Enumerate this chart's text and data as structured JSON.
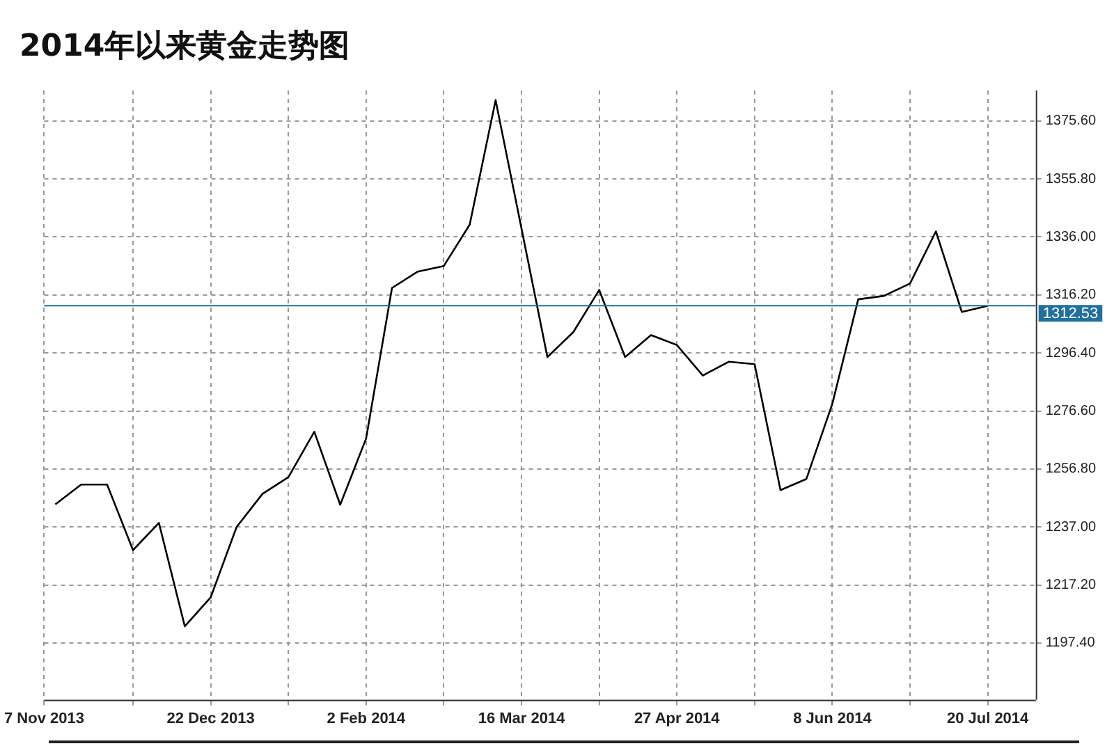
{
  "chart_data": {
    "type": "line",
    "title": "2014年以来黄金走势图",
    "x": [
      "2013-11-10",
      "2013-11-17",
      "2013-11-24",
      "2013-12-01",
      "2013-12-08",
      "2013-12-15",
      "2013-12-22",
      "2013-12-29",
      "2014-01-05",
      "2014-01-12",
      "2014-01-19",
      "2014-01-26",
      "2014-02-02",
      "2014-02-09",
      "2014-02-16",
      "2014-02-23",
      "2014-03-02",
      "2014-03-09",
      "2014-03-23",
      "2014-03-30",
      "2014-04-06",
      "2014-04-13",
      "2014-04-20",
      "2014-04-27",
      "2014-05-04",
      "2014-05-11",
      "2014-05-18",
      "2014-05-25",
      "2014-06-01",
      "2014-06-08",
      "2014-06-15",
      "2014-06-22",
      "2014-06-29",
      "2014-07-06",
      "2014-07-13",
      "2014-07-20"
    ],
    "series": [
      {
        "color": "#000000",
        "values": [
          1244.7,
          1251.5,
          1251.5,
          1229.1,
          1238.4,
          1203.1,
          1213.0,
          1237.0,
          1248.3,
          1254.0,
          1269.5,
          1244.6,
          1267.2,
          1318.6,
          1324.2,
          1326.1,
          1340.2,
          1382.7,
          1295.0,
          1303.5,
          1317.9,
          1295.0,
          1302.5,
          1299.1,
          1288.7,
          1293.4,
          1292.6,
          1249.6,
          1253.4,
          1279.0,
          1314.7,
          1315.9,
          1320.1,
          1337.9,
          1310.4,
          1312.5
        ]
      }
    ],
    "xlim": [
      "2013-11-07",
      "2014-08-02"
    ],
    "xticks": [
      {
        "value": "2013-11-07",
        "label": "7 Nov 2013"
      },
      {
        "value": "2013-12-01",
        "label": null
      },
      {
        "value": "2013-12-22",
        "label": "22 Dec 2013"
      },
      {
        "value": "2014-01-12",
        "label": null
      },
      {
        "value": "2014-02-02",
        "label": "2 Feb 2014"
      },
      {
        "value": "2014-02-23",
        "label": null
      },
      {
        "value": "2014-03-16",
        "label": "16 Mar 2014"
      },
      {
        "value": "2014-04-06",
        "label": null
      },
      {
        "value": "2014-04-27",
        "label": "27 Apr 2014"
      },
      {
        "value": "2014-05-18",
        "label": null
      },
      {
        "value": "2014-06-08",
        "label": "8 Jun 2014"
      },
      {
        "value": "2014-06-29",
        "label": null
      },
      {
        "value": "2014-07-20",
        "label": "20 Jul 2014"
      }
    ],
    "ylim": [
      1178,
      1386
    ],
    "yticks": [
      {
        "value": 1197.4,
        "label": "1197.40"
      },
      {
        "value": 1217.2,
        "label": "1217.20"
      },
      {
        "value": 1237,
        "label": "1237.00"
      },
      {
        "value": 1256.8,
        "label": "1256.80"
      },
      {
        "value": 1276.6,
        "label": "1276.60"
      },
      {
        "value": 1296.4,
        "label": "1296.40"
      },
      {
        "value": 1316.2,
        "label": "1316.20"
      },
      {
        "value": 1336,
        "label": "1336.00"
      },
      {
        "value": 1355.8,
        "label": "1355.80"
      },
      {
        "value": 1375.6,
        "label": "1375.60"
      }
    ],
    "ref_lines": [
      {
        "axis": "y",
        "value": 1312.53,
        "label": "1312.53",
        "color": "#1f6f9f"
      }
    ],
    "grid": true,
    "legend": false,
    "marker": "none",
    "line_style": "solid"
  }
}
